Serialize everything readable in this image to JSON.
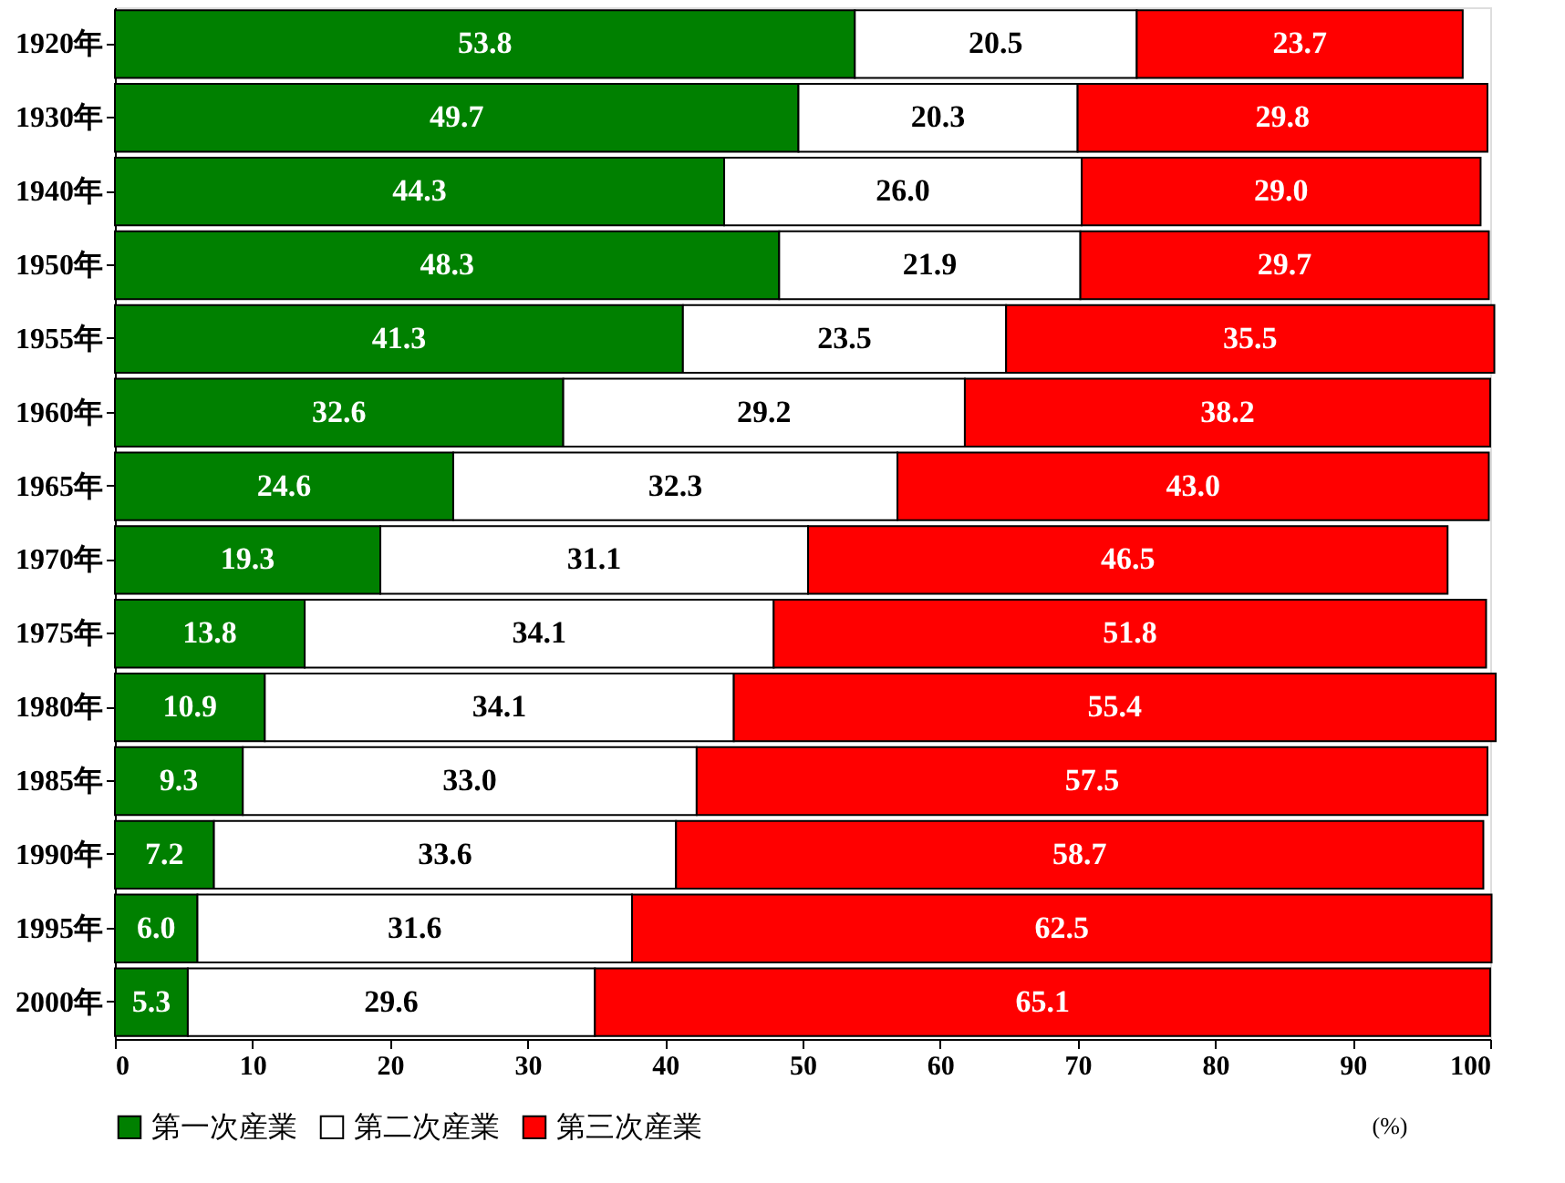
{
  "chart_data": {
    "type": "bar",
    "orientation": "horizontal",
    "stacked": true,
    "data_labels": true,
    "legend": "bottom",
    "grid": false,
    "categories": [
      "1920年",
      "1930年",
      "1940年",
      "1950年",
      "1955年",
      "1960年",
      "1965年",
      "1970年",
      "1975年",
      "1980年",
      "1985年",
      "1990年",
      "1995年",
      "2000年"
    ],
    "series": [
      {
        "name": "第一次産業",
        "color": "#008000",
        "values": [
          53.8,
          49.7,
          44.3,
          48.3,
          41.3,
          32.6,
          24.6,
          19.3,
          13.8,
          10.9,
          9.3,
          7.2,
          6.0,
          5.3
        ],
        "value_labels": [
          "53.8",
          "49.7",
          "44.3",
          "48.3",
          "41.3",
          "32.6",
          "24.6",
          "19.3",
          "13.8",
          "10.9",
          "9.3",
          "7.2",
          "6.0",
          "5.3"
        ]
      },
      {
        "name": "第二次産業",
        "color": "#ffffff",
        "values": [
          20.5,
          20.3,
          26.0,
          21.9,
          23.5,
          29.2,
          32.3,
          31.1,
          34.1,
          34.1,
          33.0,
          33.6,
          31.6,
          29.6
        ],
        "value_labels": [
          "20.5",
          "20.3",
          "26.0",
          "21.9",
          "23.5",
          "29.2",
          "32.3",
          "31.1",
          "34.1",
          "34.1",
          "33.0",
          "33.6",
          "31.6",
          "29.6"
        ]
      },
      {
        "name": "第三次産業",
        "color": "#ff0000",
        "values": [
          23.7,
          29.8,
          29.0,
          29.7,
          35.5,
          38.2,
          43.0,
          46.5,
          51.8,
          55.4,
          57.5,
          58.7,
          62.5,
          65.1
        ],
        "value_labels": [
          "23.7",
          "29.8",
          "29.0",
          "29.7",
          "35.5",
          "38.2",
          "43.0",
          "46.5",
          "51.8",
          "55.4",
          "57.5",
          "58.7",
          "62.5",
          "65.1"
        ]
      }
    ],
    "xlim": [
      0,
      100
    ],
    "xticks": [
      0,
      10,
      20,
      30,
      40,
      50,
      60,
      70,
      80,
      90,
      100
    ],
    "annotations": [
      "(%)"
    ]
  }
}
